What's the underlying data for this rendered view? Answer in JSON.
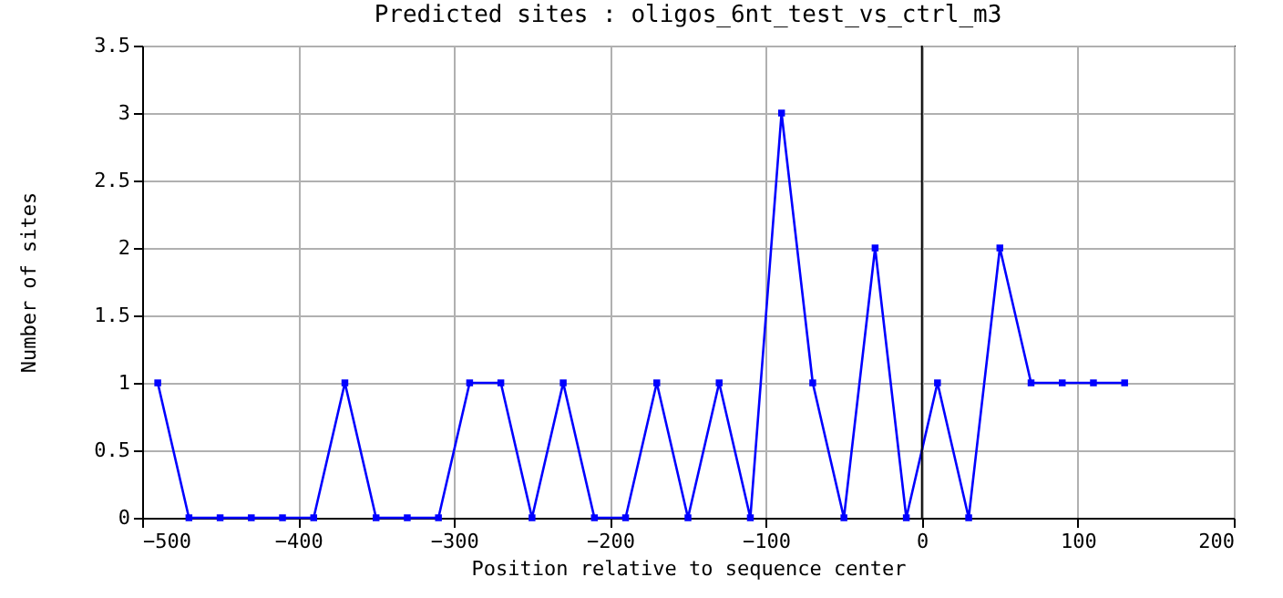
{
  "chart_data": {
    "type": "line",
    "title": "Predicted sites : oligos_6nt_test_vs_ctrl_m3",
    "xlabel": "Position relative to sequence center",
    "ylabel": "Number of sites",
    "x": [
      -490,
      -470,
      -450,
      -430,
      -410,
      -390,
      -370,
      -350,
      -330,
      -310,
      -290,
      -270,
      -250,
      -230,
      -210,
      -190,
      -170,
      -150,
      -130,
      -110,
      -90,
      -70,
      -50,
      -30,
      -10,
      10,
      30,
      50,
      70,
      90,
      110,
      130
    ],
    "series": [
      {
        "color": "#0000ff",
        "values": [
          1,
          0,
          0,
          0,
          0,
          0,
          1,
          0,
          0,
          0,
          1,
          1,
          0,
          1,
          0,
          0,
          1,
          0,
          1,
          0,
          3,
          1,
          0,
          2,
          0,
          1,
          0,
          2,
          1,
          1,
          1,
          1
        ]
      }
    ],
    "xlim": [
      -500,
      200
    ],
    "xticks": [
      -500,
      -400,
      -300,
      -200,
      -100,
      0,
      100,
      200
    ],
    "ylim": [
      0,
      3.5
    ],
    "yticks": [
      0,
      0.5,
      1,
      1.5,
      2,
      2.5,
      3,
      3.5
    ],
    "ref_lines": [
      {
        "axis": "x",
        "value": 0,
        "color": "#000000"
      }
    ],
    "grid": true,
    "marker": "square",
    "line_style": "solid"
  }
}
